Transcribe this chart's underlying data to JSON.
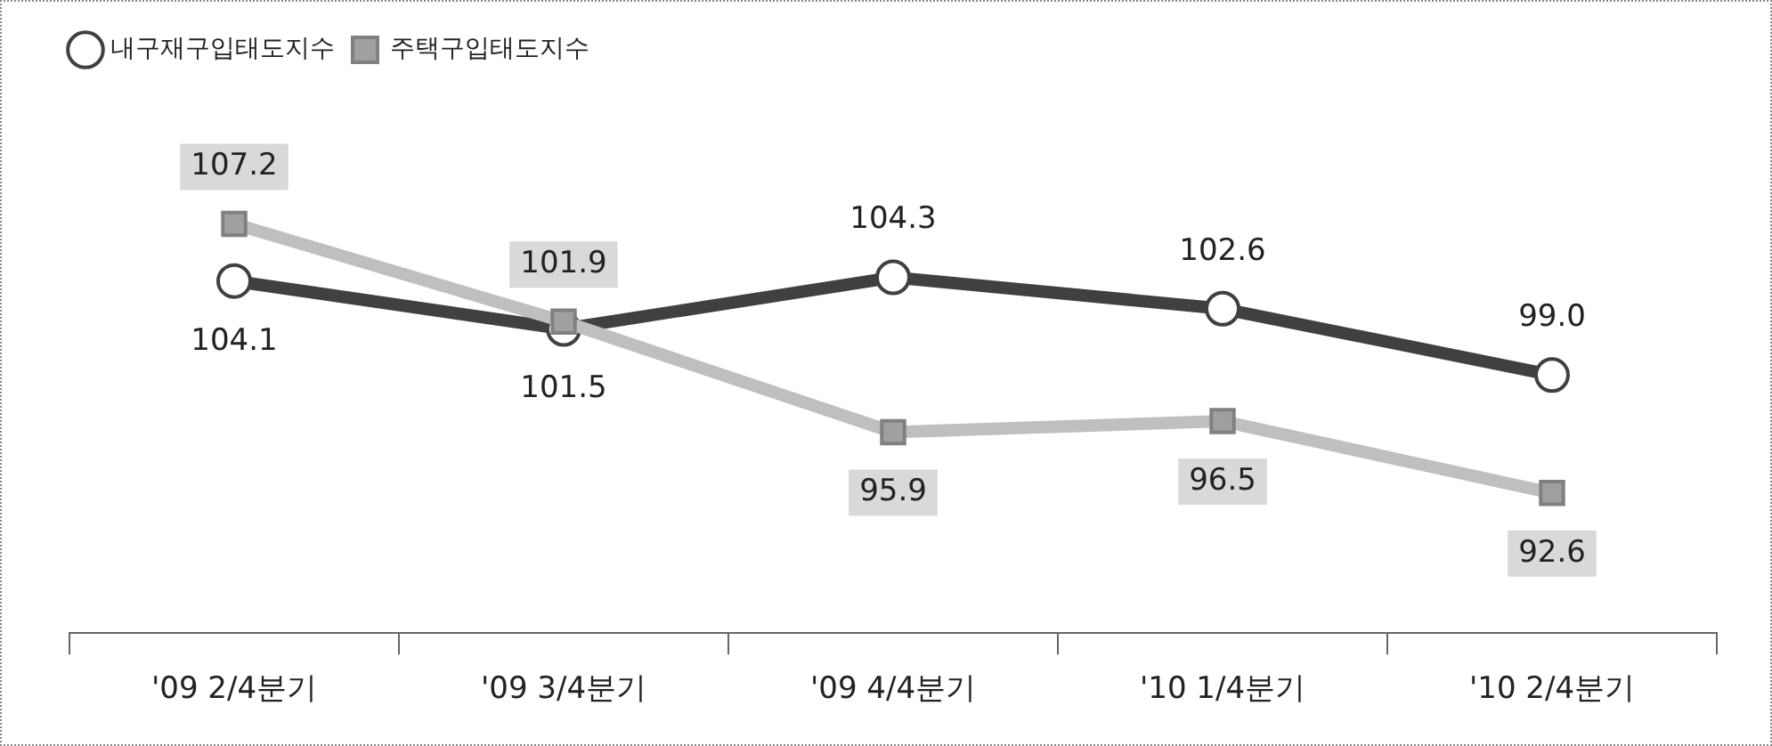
{
  "chart_data": {
    "type": "line",
    "categories": [
      "'09 2/4분기",
      "'09 3/4분기",
      "'09 4/4분기",
      "'10 1/4분기",
      "'10 2/4분기"
    ],
    "series": [
      {
        "name": "내구재구입태도지수",
        "color": "#404040",
        "marker": "circle",
        "values": [
          104.1,
          101.5,
          104.3,
          102.6,
          99.0
        ],
        "value_labels": [
          "104.1",
          "101.5",
          "104.3",
          "102.6",
          "99.0"
        ]
      },
      {
        "name": "주택구입태도지수",
        "color": "#bfbfbf",
        "marker": "square",
        "values": [
          107.2,
          101.9,
          95.9,
          96.5,
          92.6
        ],
        "value_labels": [
          "107.2",
          "101.9",
          "95.9",
          "96.5",
          "92.6"
        ]
      }
    ],
    "legend": "top left",
    "grid": false
  }
}
